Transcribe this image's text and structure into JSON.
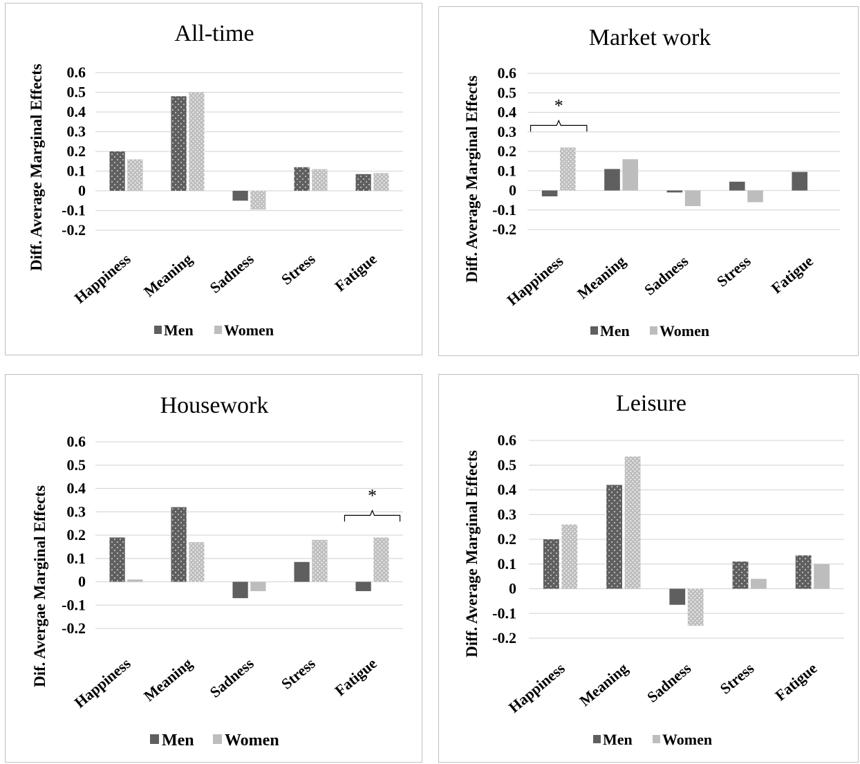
{
  "legend": {
    "men": "Men",
    "women": "Women"
  },
  "colors": {
    "men": "#5f5f5f",
    "women": "#bdbdbd",
    "men_dots": "#bfbfbf",
    "women_dots": "#f2f2f2",
    "grid": "#d9d9d9",
    "border": "#bfbfbf"
  },
  "chart_data": [
    {
      "type": "bar",
      "title": "All-time",
      "ylabel": "Diff. Average Marginal Effects",
      "xlabel": "",
      "categories": [
        "Happiness",
        "Meaning",
        "Sadness",
        "Stress",
        "Fatigue"
      ],
      "ylim": [
        -0.2,
        0.6
      ],
      "yticks": [
        "0.6",
        "0.5",
        "0.4",
        "0.3",
        "0.2",
        "0.1",
        "0",
        "-0.1",
        "-0.2"
      ],
      "legend_position": "bottom",
      "grid": true,
      "series": [
        {
          "name": "Men",
          "values": [
            0.2,
            0.48,
            -0.05,
            0.12,
            0.085
          ],
          "patterned": [
            true,
            true,
            false,
            true,
            true
          ]
        },
        {
          "name": "Women",
          "values": [
            0.16,
            0.5,
            -0.095,
            0.11,
            0.09
          ],
          "patterned": [
            true,
            true,
            true,
            true,
            true
          ]
        }
      ],
      "annotations": []
    },
    {
      "type": "bar",
      "title": "Market work",
      "ylabel": "Diff. Average Marginal Effects",
      "xlabel": "",
      "categories": [
        "Happiness",
        "Meaning",
        "Sadness",
        "Stress",
        "Fatigue"
      ],
      "ylim": [
        -0.2,
        0.6
      ],
      "yticks": [
        "0.6",
        "0.5",
        "0.4",
        "0.3",
        "0.2",
        "0.1",
        "0",
        "-0.1",
        "-0.2"
      ],
      "legend_position": "bottom",
      "grid": true,
      "series": [
        {
          "name": "Men",
          "values": [
            -0.03,
            0.11,
            -0.01,
            0.045,
            0.095
          ],
          "patterned": [
            false,
            false,
            false,
            false,
            false
          ]
        },
        {
          "name": "Women",
          "values": [
            0.22,
            0.16,
            -0.08,
            -0.06,
            0.0
          ],
          "patterned": [
            true,
            false,
            false,
            false,
            false
          ]
        }
      ],
      "annotations": [
        {
          "text": "*",
          "category_index": 0
        }
      ]
    },
    {
      "type": "bar",
      "title": "Housework",
      "ylabel": "Dif. Avergae Marginal Effects",
      "xlabel": "",
      "categories": [
        "Happiness",
        "Meaning",
        "Sadness",
        "Stress",
        "Fatigue"
      ],
      "ylim": [
        -0.2,
        0.6
      ],
      "yticks": [
        "0.6",
        "0.5",
        "0.4",
        "0.3",
        "0.2",
        "0.1",
        "0",
        "-0.1",
        "-0.2"
      ],
      "legend_position": "bottom",
      "grid": true,
      "series": [
        {
          "name": "Men",
          "values": [
            0.19,
            0.32,
            -0.07,
            0.085,
            -0.04
          ],
          "patterned": [
            true,
            true,
            false,
            false,
            false
          ]
        },
        {
          "name": "Women",
          "values": [
            0.01,
            0.17,
            -0.04,
            0.18,
            0.19
          ],
          "patterned": [
            false,
            true,
            false,
            true,
            true
          ]
        }
      ],
      "annotations": [
        {
          "text": "*",
          "category_index": 4
        }
      ]
    },
    {
      "type": "bar",
      "title": "Leisure",
      "ylabel": "Diff. Average Marginal Effects",
      "xlabel": "",
      "categories": [
        "Happiness",
        "Meaning",
        "Sadness",
        "Stress",
        "Fatigue"
      ],
      "ylim": [
        -0.2,
        0.6
      ],
      "yticks": [
        "0.6",
        "0.5",
        "0.4",
        "0.3",
        "0.2",
        "0.1",
        "0",
        "-0.1",
        "-0.2"
      ],
      "legend_position": "bottom",
      "grid": true,
      "series": [
        {
          "name": "Men",
          "values": [
            0.2,
            0.42,
            -0.065,
            0.11,
            0.135
          ],
          "patterned": [
            true,
            true,
            false,
            true,
            true
          ]
        },
        {
          "name": "Women",
          "values": [
            0.26,
            0.535,
            -0.15,
            0.04,
            0.1
          ],
          "patterned": [
            true,
            true,
            true,
            false,
            false
          ]
        }
      ],
      "annotations": []
    }
  ]
}
